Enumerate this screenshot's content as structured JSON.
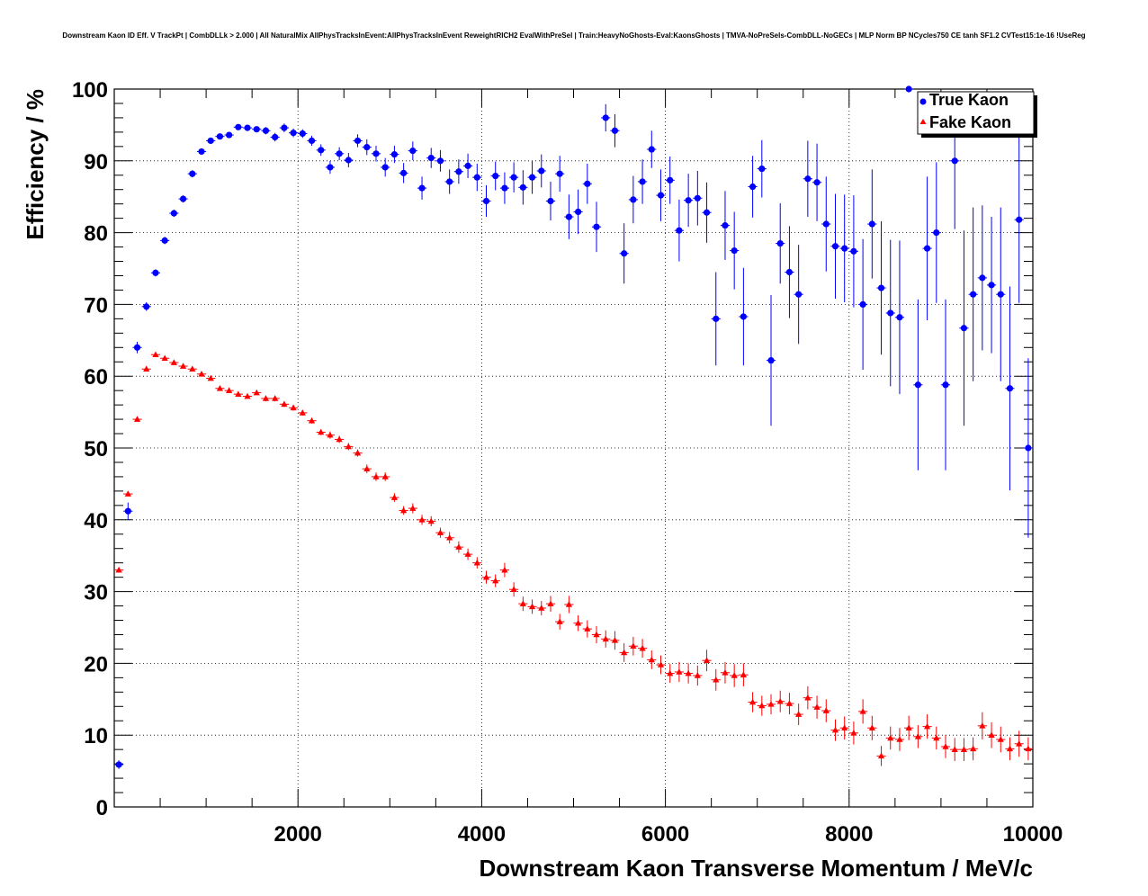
{
  "chart_data": {
    "type": "scatter",
    "title": "Downstream Kaon ID Eff. V TrackPt | CombDLLk > 2.000 | All NaturalMix AllPhysTracksInEvent:AllPhysTracksInEvent ReweightRICH2 EvalWithPreSel | Train:HeavyNoGhosts-Eval:KaonsGhosts | TMVA-NoPreSels-CombDLL-NoGECs | MLP Norm BP NCycles750 CE tanh SF1.2 CVTest15:1e-16 !UseReg",
    "xlabel": "Downstream Kaon Transverse Momentum / MeV/c",
    "ylabel": "Efficiency / %",
    "xlim": [
      0,
      10000
    ],
    "ylim": [
      0,
      100
    ],
    "grid": true,
    "legend_position": "top-right",
    "x_ticks": [
      2000,
      4000,
      6000,
      8000,
      10000
    ],
    "y_ticks": [
      0,
      10,
      20,
      30,
      40,
      50,
      60,
      70,
      80,
      90,
      100
    ],
    "bin_width": 100,
    "series": [
      {
        "name": "True Kaon",
        "color": "#0000ff",
        "marker": "circle",
        "x": [
          50,
          150,
          250,
          350,
          450,
          550,
          650,
          750,
          850,
          950,
          1050,
          1150,
          1250,
          1350,
          1450,
          1550,
          1650,
          1750,
          1850,
          1950,
          2050,
          2150,
          2250,
          2350,
          2450,
          2550,
          2650,
          2750,
          2850,
          2950,
          3050,
          3150,
          3250,
          3350,
          3450,
          3550,
          3650,
          3750,
          3850,
          3950,
          4050,
          4150,
          4250,
          4350,
          4450,
          4550,
          4650,
          4750,
          4850,
          4950,
          5050,
          5150,
          5250,
          5350,
          5450,
          5550,
          5650,
          5750,
          5850,
          5950,
          6050,
          6150,
          6250,
          6350,
          6450,
          6550,
          6650,
          6750,
          6850,
          6950,
          7050,
          7150,
          7250,
          7350,
          7450,
          7550,
          7650,
          7750,
          7850,
          7950,
          8050,
          8150,
          8250,
          8350,
          8450,
          8550,
          8650,
          8750,
          8850,
          8950,
          9050,
          9150,
          9250,
          9350,
          9450,
          9550,
          9650,
          9750,
          9850,
          9950
        ],
        "y": [
          5.9,
          41.2,
          64.0,
          69.7,
          74.4,
          78.9,
          82.7,
          84.7,
          88.2,
          91.3,
          92.8,
          93.4,
          93.6,
          94.7,
          94.6,
          94.4,
          94.2,
          93.3,
          94.6,
          93.9,
          93.8,
          92.8,
          91.5,
          89.1,
          91.0,
          90.1,
          92.8,
          91.9,
          91.0,
          89.1,
          90.9,
          88.3,
          91.4,
          86.2,
          90.4,
          90.0,
          87.1,
          88.5,
          89.3,
          87.7,
          84.4,
          87.9,
          86.2,
          87.7,
          86.3,
          87.7,
          88.6,
          84.4,
          88.2,
          82.2,
          82.9,
          86.8,
          80.8,
          96.0,
          94.2,
          77.1,
          84.6,
          87.1,
          91.6,
          85.2,
          87.3,
          80.3,
          84.5,
          84.8,
          82.8,
          68.0,
          81.0,
          77.5,
          68.3,
          86.4,
          88.9,
          62.2,
          78.5,
          74.5,
          71.4,
          87.5,
          87.0,
          81.2,
          78.1,
          77.8,
          77.4,
          70.0,
          81.2,
          72.3,
          68.8,
          68.2,
          100.0,
          58.8,
          77.8,
          80.0,
          58.8,
          90.0,
          66.7,
          71.4,
          73.7,
          72.7,
          71.4,
          58.3,
          81.8,
          50.0
        ],
        "yerr": [
          0.6,
          1.2,
          0.8,
          0.6,
          0.5,
          0.5,
          0.5,
          0.5,
          0.5,
          0.4,
          0.4,
          0.4,
          0.4,
          0.4,
          0.4,
          0.4,
          0.5,
          0.6,
          0.6,
          0.6,
          0.6,
          0.7,
          0.8,
          0.9,
          0.9,
          1.0,
          0.9,
          1.1,
          1.1,
          1.3,
          1.2,
          1.4,
          1.3,
          1.6,
          1.4,
          1.5,
          1.7,
          1.7,
          1.7,
          1.9,
          2.2,
          2.0,
          2.2,
          2.1,
          2.4,
          2.3,
          2.3,
          2.7,
          2.5,
          3.1,
          3.1,
          2.8,
          3.5,
          1.9,
          2.3,
          4.2,
          3.3,
          3.1,
          2.6,
          3.6,
          3.3,
          4.3,
          3.7,
          3.8,
          4.2,
          6.5,
          4.8,
          5.4,
          6.8,
          4.3,
          4.0,
          9.1,
          5.6,
          6.4,
          6.9,
          5.3,
          5.4,
          6.6,
          7.3,
          7.5,
          7.8,
          9.1,
          7.6,
          9.3,
          10.2,
          10.7,
          0.0,
          11.9,
          10.0,
          9.8,
          11.9,
          9.5,
          13.6,
          12.1,
          10.1,
          9.5,
          12.1,
          14.2,
          11.6,
          12.5
        ]
      },
      {
        "name": "Fake Kaon",
        "color": "#ff0000",
        "marker": "triangle",
        "x": [
          50,
          150,
          250,
          350,
          450,
          550,
          650,
          750,
          850,
          950,
          1050,
          1150,
          1250,
          1350,
          1450,
          1550,
          1650,
          1750,
          1850,
          1950,
          2050,
          2150,
          2250,
          2350,
          2450,
          2550,
          2650,
          2750,
          2850,
          2950,
          3050,
          3150,
          3250,
          3350,
          3450,
          3550,
          3650,
          3750,
          3850,
          3950,
          4050,
          4150,
          4250,
          4350,
          4450,
          4550,
          4650,
          4750,
          4850,
          4950,
          5050,
          5150,
          5250,
          5350,
          5450,
          5550,
          5650,
          5750,
          5850,
          5950,
          6050,
          6150,
          6250,
          6350,
          6450,
          6550,
          6650,
          6750,
          6850,
          6950,
          7050,
          7150,
          7250,
          7350,
          7450,
          7550,
          7650,
          7750,
          7850,
          7950,
          8050,
          8150,
          8250,
          8350,
          8450,
          8550,
          8650,
          8750,
          8850,
          8950,
          9050,
          9150,
          9250,
          9350,
          9450,
          9550,
          9650,
          9750,
          9850,
          9950
        ],
        "y": [
          33.0,
          43.6,
          54.0,
          61.0,
          63.0,
          62.5,
          61.9,
          61.4,
          61.0,
          60.3,
          59.7,
          58.3,
          58.0,
          57.5,
          57.2,
          57.7,
          56.9,
          56.9,
          56.1,
          55.6,
          54.9,
          53.8,
          52.2,
          51.8,
          51.2,
          50.2,
          49.3,
          47.1,
          46.0,
          46.0,
          43.1,
          41.3,
          41.6,
          40.0,
          39.8,
          38.2,
          37.5,
          36.2,
          35.2,
          34.0,
          32.0,
          31.5,
          33.0,
          30.3,
          28.3,
          27.9,
          27.7,
          28.3,
          25.8,
          28.2,
          25.6,
          24.8,
          24.0,
          23.4,
          23.2,
          21.5,
          22.4,
          22.1,
          20.5,
          19.8,
          18.6,
          18.8,
          18.6,
          18.3,
          20.4,
          17.7,
          18.7,
          18.3,
          18.4,
          14.6,
          14.1,
          14.3,
          14.7,
          14.4,
          12.9,
          15.2,
          13.9,
          13.4,
          10.7,
          11.0,
          10.3,
          13.3,
          11.0,
          7.1,
          9.6,
          9.4,
          11.0,
          9.8,
          11.2,
          9.6,
          8.4,
          8.0,
          8.0,
          8.1,
          11.3,
          10.0,
          9.4,
          8.1,
          8.8,
          8.1
        ],
        "yerr": [
          0.3,
          0.3,
          0.3,
          0.3,
          0.3,
          0.3,
          0.3,
          0.3,
          0.3,
          0.3,
          0.3,
          0.3,
          0.3,
          0.3,
          0.3,
          0.3,
          0.4,
          0.4,
          0.4,
          0.4,
          0.4,
          0.4,
          0.4,
          0.5,
          0.5,
          0.5,
          0.5,
          0.6,
          0.6,
          0.6,
          0.6,
          0.6,
          0.7,
          0.7,
          0.7,
          0.7,
          0.8,
          0.8,
          0.8,
          0.8,
          0.9,
          0.9,
          1.0,
          1.0,
          1.0,
          1.0,
          1.0,
          1.1,
          1.1,
          1.2,
          1.1,
          1.2,
          1.2,
          1.2,
          1.3,
          1.3,
          1.3,
          1.3,
          1.3,
          1.3,
          1.3,
          1.4,
          1.4,
          1.4,
          1.5,
          1.5,
          1.5,
          1.6,
          1.6,
          1.4,
          1.4,
          1.4,
          1.5,
          1.5,
          1.5,
          1.6,
          1.6,
          1.6,
          1.5,
          1.6,
          1.6,
          1.7,
          1.7,
          1.4,
          1.6,
          1.6,
          1.7,
          1.6,
          1.7,
          1.6,
          1.6,
          1.6,
          1.6,
          1.6,
          1.9,
          1.8,
          1.8,
          1.6,
          1.8,
          1.6
        ]
      }
    ]
  }
}
